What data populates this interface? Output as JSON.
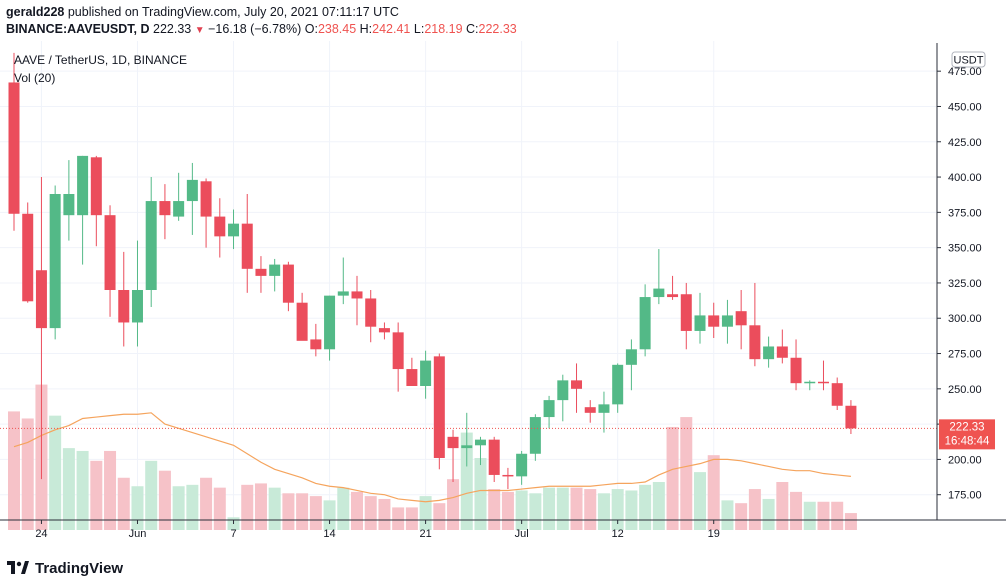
{
  "header": {
    "author": "gerald228",
    "published_text": "published on TradingView.com, July 20, 2021 07:11:17 UTC",
    "symbol_line": "BINANCE:AAVEUSDT, D",
    "last": "222.33",
    "change_arrow": "▼",
    "change": "−16.18 (−6.78%)",
    "o_label": "O:",
    "o_value": "238.45",
    "h_label": "H:",
    "h_value": "242.41",
    "l_label": "L:",
    "l_value": "218.19",
    "c_label": "C:",
    "c_value": "222.33"
  },
  "legend": {
    "title": "AAVE / TetherUS, 1D, BINANCE",
    "volume": "Vol (20)"
  },
  "price_axis": {
    "currency_badge": "USDT",
    "labels": [
      "5",
      "475.00",
      "450.00",
      "425.00",
      "400.00",
      "375.00",
      "350.00",
      "325.00",
      "300.00",
      "275.00",
      "250.00",
      "225.00",
      "200.00",
      "175.00"
    ],
    "last_price_label": "222.33",
    "countdown_label": "16:48:44"
  },
  "time_axis": {
    "labels": [
      "24",
      "Jun",
      "7",
      "14",
      "21",
      "Jul",
      "12",
      "19"
    ]
  },
  "footer": {
    "brand": "TradingView"
  },
  "colors": {
    "up": "#26a69a",
    "up_body": "#53b987",
    "down": "#eb4d5c",
    "vol_up": "#c8ead8",
    "vol_down": "#f6c2c8",
    "ma": "#f5a45d",
    "grid": "#f0f3fa",
    "last_price": "#ef5350"
  },
  "chart_data": {
    "type": "candlestick",
    "symbol": "AAVE / TetherUS",
    "interval": "1D",
    "exchange": "BINANCE",
    "y_range": [
      150,
      490
    ],
    "ohlc": [
      [
        467,
        488,
        362,
        374
      ],
      [
        374,
        382,
        311,
        312
      ],
      [
        334,
        400,
        186,
        293
      ],
      [
        293,
        394,
        285,
        388
      ],
      [
        373,
        412,
        355,
        388
      ],
      [
        373,
        415,
        338,
        415
      ],
      [
        414,
        415,
        351,
        373
      ],
      [
        373,
        380,
        301,
        320
      ],
      [
        320,
        347,
        280,
        297
      ],
      [
        297,
        355,
        280,
        320
      ],
      [
        320,
        400,
        308,
        383
      ],
      [
        383,
        395,
        356,
        373
      ],
      [
        372,
        403,
        369,
        383
      ],
      [
        383,
        410,
        359,
        398
      ],
      [
        397,
        399,
        350,
        372
      ],
      [
        372,
        385,
        343,
        358
      ],
      [
        358,
        377,
        349,
        367
      ],
      [
        367,
        388,
        318,
        335
      ],
      [
        335,
        344,
        318,
        330
      ],
      [
        330,
        342,
        319,
        338
      ],
      [
        338,
        340,
        305,
        311
      ],
      [
        311,
        318,
        285,
        284
      ],
      [
        285,
        296,
        273,
        278
      ],
      [
        278,
        316,
        270,
        316
      ],
      [
        316,
        343,
        310,
        319
      ],
      [
        319,
        330,
        295,
        314
      ],
      [
        314,
        320,
        283,
        294
      ],
      [
        293,
        297,
        285,
        290
      ],
      [
        290,
        297,
        248,
        264
      ],
      [
        264,
        272,
        255,
        252
      ],
      [
        252,
        277,
        243,
        270
      ],
      [
        273,
        275,
        193,
        201
      ],
      [
        216,
        221,
        184,
        208
      ],
      [
        208,
        233,
        195,
        210
      ],
      [
        210,
        216,
        196,
        214
      ],
      [
        214,
        216,
        184,
        189
      ],
      [
        189,
        194,
        179,
        188
      ],
      [
        188,
        206,
        182,
        204
      ],
      [
        204,
        232,
        199,
        230
      ],
      [
        230,
        245,
        222,
        242
      ],
      [
        242,
        260,
        227,
        256
      ],
      [
        256,
        268,
        233,
        250
      ],
      [
        237,
        242,
        226,
        233
      ],
      [
        233,
        248,
        219,
        239
      ],
      [
        239,
        268,
        233,
        267
      ],
      [
        267,
        285,
        249,
        278
      ],
      [
        278,
        324,
        273,
        315
      ],
      [
        315,
        349,
        310,
        321
      ],
      [
        317,
        330,
        313,
        315
      ],
      [
        317,
        325,
        278,
        291
      ],
      [
        291,
        318,
        282,
        302
      ],
      [
        302,
        311,
        286,
        294
      ],
      [
        294,
        313,
        282,
        302
      ],
      [
        305,
        320,
        278,
        295
      ],
      [
        295,
        325,
        266,
        271
      ],
      [
        271,
        287,
        265,
        280
      ],
      [
        280,
        292,
        268,
        272
      ],
      [
        272,
        285,
        249,
        254
      ],
      [
        254,
        256,
        249,
        255
      ],
      [
        255,
        270,
        249,
        254
      ],
      [
        254,
        258,
        235,
        238
      ],
      [
        238,
        242,
        218,
        222
      ]
    ],
    "volume_ma": [
      209,
      212,
      217,
      221,
      224,
      229,
      230,
      231,
      232,
      232,
      233,
      225,
      222,
      219,
      216,
      213,
      210,
      204,
      198,
      193,
      190,
      187,
      183,
      181,
      180,
      178,
      176,
      175,
      172,
      171,
      170,
      171,
      173,
      176,
      178,
      178,
      178,
      179,
      180,
      181,
      181,
      181,
      181,
      182,
      183,
      183,
      184,
      189,
      193,
      195,
      197,
      200,
      200,
      199,
      197,
      195,
      193,
      192,
      192,
      190,
      189,
      188
    ],
    "volume_levels": [
      234,
      229,
      253,
      231,
      208,
      206,
      199,
      206,
      187,
      181,
      199,
      192,
      181,
      182,
      187,
      180,
      159,
      182,
      183,
      180,
      176,
      176,
      174,
      171,
      180,
      177,
      174,
      172,
      166,
      166,
      174,
      169,
      186,
      219,
      201,
      179,
      177,
      178,
      176,
      180,
      180,
      180,
      179,
      176,
      179,
      178,
      182,
      184,
      223,
      230,
      191,
      203,
      171,
      169,
      179,
      172,
      184,
      177,
      170,
      170,
      170,
      162
    ]
  }
}
